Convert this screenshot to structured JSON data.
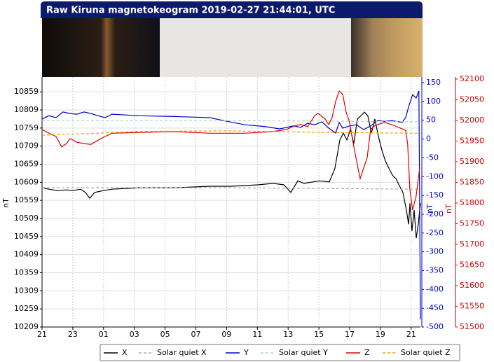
{
  "chart_data": {
    "type": "line",
    "title": "Raw Kiruna magnetokeogram 2019-02-27 21:44:01, UTC",
    "y_label": "nT",
    "y2_label": "nT",
    "y3_label": "nT",
    "xlim": [
      0,
      24.6
    ],
    "xticks": [
      {
        "value": 0,
        "label": "21"
      },
      {
        "value": 2,
        "label": "23"
      },
      {
        "value": 4,
        "label": "01"
      },
      {
        "value": 6,
        "label": "03"
      },
      {
        "value": 8,
        "label": "05"
      },
      {
        "value": 10,
        "label": "07"
      },
      {
        "value": 12,
        "label": "09"
      },
      {
        "value": 14,
        "label": "11"
      },
      {
        "value": 16,
        "label": "13"
      },
      {
        "value": 18,
        "label": "15"
      },
      {
        "value": 20,
        "label": "17"
      },
      {
        "value": 22,
        "label": "19"
      },
      {
        "value": 24,
        "label": "21"
      }
    ],
    "ylim": [
      10209,
      10900
    ],
    "yticks": [
      10209,
      10259,
      10309,
      10359,
      10409,
      10459,
      10509,
      10559,
      10609,
      10659,
      10709,
      10759,
      10809,
      10859
    ],
    "y2lim": [
      -500,
      165
    ],
    "y2color": "#0000cc",
    "y2ticks": [
      -500,
      -450,
      -400,
      -350,
      -300,
      -250,
      -200,
      -150,
      -100,
      -50,
      0,
      50,
      100,
      150
    ],
    "y3lim": [
      51500,
      52105
    ],
    "y3color": "#cc0000",
    "y3ticks": [
      51500,
      51550,
      51600,
      51650,
      51700,
      51750,
      51800,
      51850,
      51900,
      51950,
      52000,
      52050,
      52100
    ],
    "grid": true,
    "series": [
      {
        "name": "X",
        "color": "#000000",
        "style": "solid",
        "axis": "y",
        "x": [
          0,
          0.45,
          1,
          1.6,
          2,
          2.5,
          2.82,
          3.1,
          3.42,
          4,
          4.55,
          6.38,
          8.66,
          10.93,
          12.3,
          14.03,
          15.03,
          15.72,
          16.17,
          16.63,
          17.04,
          18.04,
          18.68,
          19.04,
          19.36,
          19.59,
          19.82,
          20.05,
          20.27,
          20.5,
          20.73,
          20.96,
          21.18,
          21.41,
          21.64,
          21.87,
          22.1,
          22.32,
          22.55,
          22.78,
          23.01,
          23.23,
          23.46,
          23.69,
          23.83,
          23.92,
          24.05,
          24.19,
          24.33,
          24.46,
          24.6
        ],
        "values": [
          10594,
          10590,
          10586,
          10588,
          10586,
          10590,
          10581,
          10565,
          10581,
          10586,
          10590,
          10594,
          10594,
          10598,
          10598,
          10602,
          10606,
          10602,
          10581,
          10613,
          10606,
          10613,
          10610,
          10648,
          10726,
          10745,
          10726,
          10755,
          10716,
          10784,
          10793,
          10803,
          10793,
          10745,
          10784,
          10735,
          10697,
          10668,
          10648,
          10629,
          10619,
          10600,
          10581,
          10532,
          10493,
          10551,
          10474,
          10532,
          10455,
          10493,
          10551
        ]
      },
      {
        "name": "Solar quiet X",
        "color": "#aaaaaa",
        "style": "dashed",
        "axis": "y",
        "x": [
          0,
          6,
          12,
          18,
          24.6
        ],
        "values": [
          10594,
          10594,
          10594,
          10592,
          10590
        ]
      },
      {
        "name": "Y",
        "color": "#0000cc",
        "style": "solid",
        "axis": "y2",
        "x": [
          0,
          0.45,
          0.91,
          1.36,
          1.82,
          2.27,
          2.73,
          3.18,
          3.64,
          4.09,
          4.55,
          6.36,
          8.64,
          10.91,
          11.82,
          13.18,
          14.55,
          15.45,
          16.36,
          16.82,
          17.27,
          17.73,
          18.18,
          18.64,
          19.09,
          19.32,
          19.55,
          20,
          20.45,
          20.91,
          21.36,
          21.82,
          22.27,
          22.73,
          23.18,
          23.41,
          23.64,
          23.86,
          24.09,
          24.32,
          24.5,
          24.6
        ],
        "values": [
          53,
          62,
          57,
          72,
          68,
          66,
          72,
          68,
          62,
          57,
          66,
          62,
          60,
          57,
          49,
          38,
          33,
          27,
          35,
          31,
          42,
          38,
          46,
          29,
          16,
          44,
          29,
          35,
          38,
          25,
          35,
          49,
          47,
          49,
          46,
          44,
          57,
          90,
          118,
          109,
          128,
          -480
        ]
      },
      {
        "name": "Solar quiet Y",
        "color": "#b8d0d0",
        "style": "dashed",
        "axis": "y2",
        "x": [
          0,
          6,
          12,
          18,
          24.6
        ],
        "values": [
          49,
          49,
          49,
          48,
          46
        ]
      },
      {
        "name": "Z",
        "color": "#dd0000",
        "style": "solid",
        "axis": "y3",
        "x": [
          0,
          0.45,
          0.91,
          1.27,
          1.59,
          1.82,
          2.27,
          2.73,
          3.18,
          3.64,
          4.09,
          4.55,
          6.36,
          8.64,
          10.91,
          13.18,
          15,
          15.91,
          16.36,
          16.82,
          17.27,
          17.73,
          17.95,
          18.41,
          18.64,
          18.86,
          19.09,
          19.32,
          19.55,
          19.77,
          20,
          20.23,
          20.45,
          20.68,
          20.91,
          21.14,
          21.36,
          21.59,
          21.82,
          22.27,
          22.73,
          23.18,
          23.64,
          23.77,
          23.91,
          24.09,
          24.32,
          24.55
        ],
        "values": [
          51978,
          51969,
          51961,
          51936,
          51944,
          51956,
          51947,
          51944,
          51942,
          51952,
          51961,
          51969,
          51971,
          51973,
          51969,
          51969,
          51973,
          51978,
          51986,
          51990,
          51985,
          52012,
          52017,
          52003,
          51990,
          52007,
          52046,
          52071,
          52063,
          52020,
          51995,
          51944,
          51902,
          51859,
          51885,
          51910,
          51978,
          51986,
          51990,
          51995,
          51990,
          51983,
          51976,
          51942,
          51834,
          51783,
          51817,
          51885
        ]
      },
      {
        "name": "Solar quiet Z",
        "color": "#ff9900",
        "style": "dashed",
        "axis": "y3",
        "x": [
          0,
          3,
          6,
          12,
          18,
          24.6
        ],
        "values": [
          51964,
          51968,
          51973,
          51975,
          51971,
          51969
        ]
      }
    ]
  }
}
